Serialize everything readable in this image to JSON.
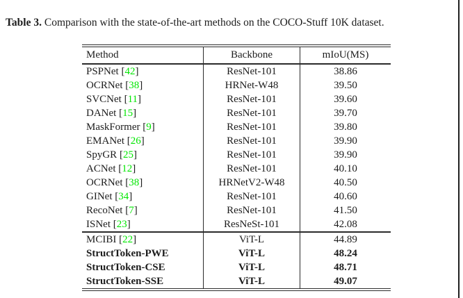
{
  "caption": {
    "prefix": "Table 3.",
    "text": "Comparison with the state-of-the-art methods on the COCO-Stuff 10K dataset."
  },
  "table": {
    "headers": [
      "Method",
      "Backbone",
      "mIoU(MS)"
    ],
    "citation_color": "#00e600",
    "rows": [
      {
        "method": "PSPNet",
        "cite": "42",
        "backbone": "ResNet-101",
        "miou": "38.86",
        "bold": false,
        "section": 1
      },
      {
        "method": "OCRNet",
        "cite": "38",
        "backbone": "HRNet-W48",
        "miou": "39.50",
        "bold": false,
        "section": 1
      },
      {
        "method": "SVCNet",
        "cite": "11",
        "backbone": "ResNet-101",
        "miou": "39.60",
        "bold": false,
        "section": 1
      },
      {
        "method": "DANet",
        "cite": "15",
        "backbone": "ResNet-101",
        "miou": "39.70",
        "bold": false,
        "section": 1
      },
      {
        "method": "MaskFormer",
        "cite": "9",
        "backbone": "ResNet-101",
        "miou": "39.80",
        "bold": false,
        "section": 1
      },
      {
        "method": "EMANet",
        "cite": "26",
        "backbone": "ResNet-101",
        "miou": "39.90",
        "bold": false,
        "section": 1
      },
      {
        "method": "SpyGR",
        "cite": "25",
        "backbone": "ResNet-101",
        "miou": "39.90",
        "bold": false,
        "section": 1
      },
      {
        "method": "ACNet",
        "cite": "12",
        "backbone": "ResNet-101",
        "miou": "40.10",
        "bold": false,
        "section": 1
      },
      {
        "method": "OCRNet",
        "cite": "38",
        "backbone": "HRNetV2-W48",
        "miou": "40.50",
        "bold": false,
        "section": 1
      },
      {
        "method": "GINet",
        "cite": "34",
        "backbone": "ResNet-101",
        "miou": "40.60",
        "bold": false,
        "section": 1
      },
      {
        "method": "RecoNet",
        "cite": "7",
        "backbone": "ResNet-101",
        "miou": "41.50",
        "bold": false,
        "section": 1
      },
      {
        "method": "ISNet",
        "cite": "23",
        "backbone": "ResNeSt-101",
        "miou": "42.08",
        "bold": false,
        "section": 1
      },
      {
        "method": "MCIBI",
        "cite": "22",
        "backbone": "ViT-L",
        "miou": "44.89",
        "bold": false,
        "section": 2
      },
      {
        "method": "StructToken-PWE",
        "cite": null,
        "backbone": "ViT-L",
        "miou": "48.24",
        "bold": true,
        "section": 2
      },
      {
        "method": "StructToken-CSE",
        "cite": null,
        "backbone": "ViT-L",
        "miou": "48.71",
        "bold": true,
        "section": 2
      },
      {
        "method": "StructToken-SSE",
        "cite": null,
        "backbone": "ViT-L",
        "miou": "49.07",
        "bold": true,
        "section": 2
      }
    ]
  }
}
